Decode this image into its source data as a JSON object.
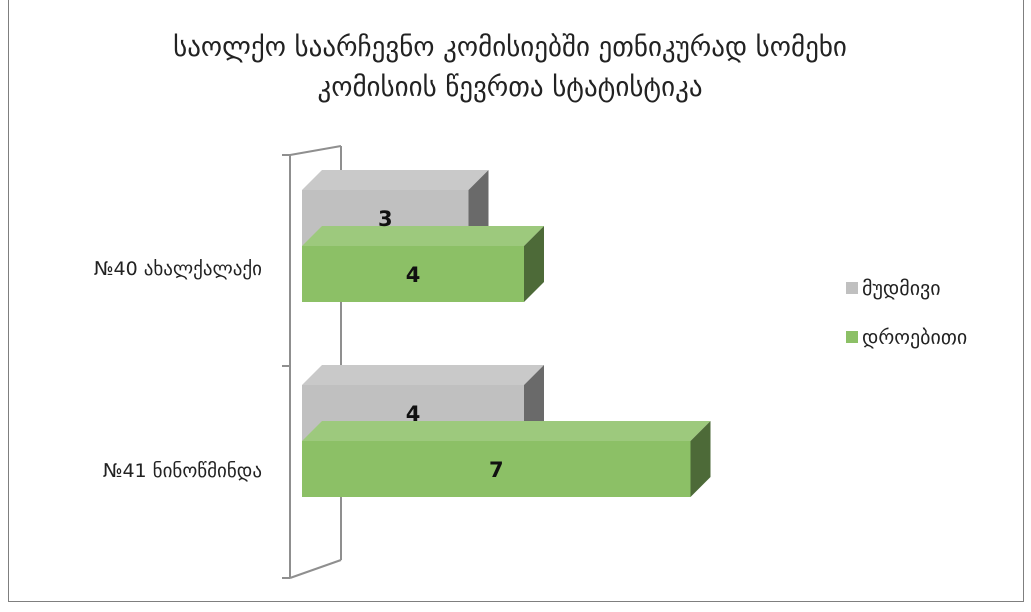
{
  "chart_data": {
    "type": "bar",
    "orientation": "horizontal",
    "three_d": true,
    "title": "საოლქო საარჩევნო კომისიებში ეთნიკურად სომეხი კომისიის წევრთა სტატისტიკა",
    "categories": [
      "№40 ახალქალაქი",
      "№41 ნინოწმინდა"
    ],
    "series": [
      {
        "name": "მუდმივი",
        "values": [
          3,
          4
        ],
        "color": "#c0c0c0"
      },
      {
        "name": "დროებითი",
        "values": [
          4,
          7
        ],
        "color": "#8cc066"
      }
    ],
    "xlim": [
      0,
      7
    ],
    "grid": false,
    "data_labels": true,
    "legend_position": "right"
  }
}
